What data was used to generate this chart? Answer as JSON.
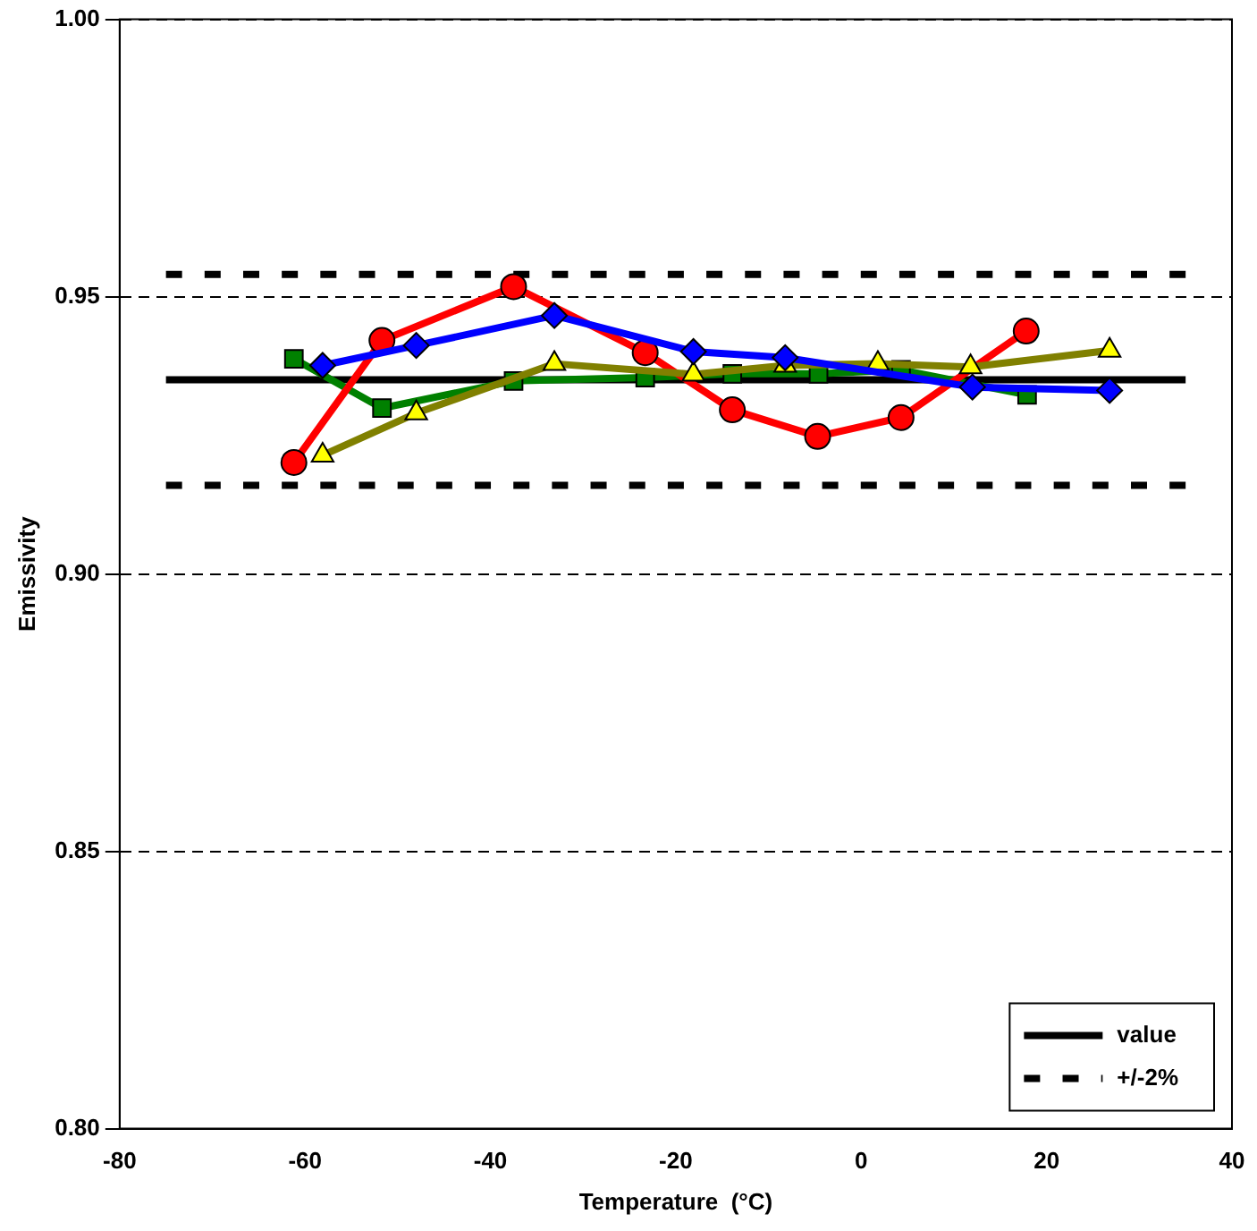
{
  "chart_data": {
    "type": "line",
    "xlabel": "Temperature  (°C)",
    "ylabel": "Emissivity",
    "xlim": [
      -80,
      40
    ],
    "xticks": [
      -80,
      -60,
      -40,
      -20,
      0,
      20,
      40
    ],
    "ylim": [
      0.8,
      1.0
    ],
    "yticks": [
      {
        "value": 0.8,
        "label": "0.80"
      },
      {
        "value": 0.85,
        "label": "0.85"
      },
      {
        "value": 0.9,
        "label": "0.90"
      },
      {
        "value": 0.95,
        "label": "0.95"
      },
      {
        "value": 1.0,
        "label": "1.00"
      }
    ],
    "grid": "y",
    "legend": "bottom right",
    "series": [
      {
        "color": "#0000ff",
        "marker": "diamond",
        "x": [
          -58.1,
          -48.0,
          -33.1,
          -18.1,
          -8.2,
          12.0,
          26.8
        ],
        "values": [
          0.9376,
          0.9412,
          0.9466,
          0.9401,
          0.939,
          0.9337,
          0.9331
        ]
      },
      {
        "color": "#808000",
        "marker": "triangle",
        "x": [
          -58.1,
          -48.0,
          -33.1,
          -18.1,
          -8.2,
          1.8,
          11.8,
          26.8
        ],
        "values": [
          0.9214,
          0.929,
          0.9379,
          0.936,
          0.9376,
          0.9379,
          0.9373,
          0.9403
        ]
      },
      {
        "color": "#ff0000",
        "marker": "circle",
        "x": [
          -61.2,
          -51.7,
          -37.5,
          -23.3,
          -13.9,
          -4.7,
          4.3,
          17.8
        ],
        "values": [
          0.9201,
          0.9421,
          0.9518,
          0.9399,
          0.9296,
          0.9248,
          0.9282,
          0.9438
        ]
      },
      {
        "color": "#008000",
        "marker": "square",
        "x": [
          -61.2,
          -51.7,
          -37.5,
          -23.3,
          -13.9,
          -4.6,
          4.3,
          17.9
        ],
        "values": [
          0.9388,
          0.9299,
          0.9348,
          0.9354,
          0.9361,
          0.9361,
          0.9368,
          0.9323
        ]
      },
      {
        "name": "value",
        "color": "#000000",
        "marker": "none",
        "x": [
          -75,
          35
        ],
        "values": [
          0.935,
          0.935
        ]
      },
      {
        "name": "+/-2%",
        "color": "#000000",
        "marker": "none",
        "line_style": "dotted",
        "x": [
          -75,
          35
        ],
        "values": [
          0.954,
          0.954
        ]
      },
      {
        "color": "#000000",
        "marker": "none",
        "line_style": "dotted",
        "x": [
          -75,
          35
        ],
        "values": [
          0.916,
          0.916
        ]
      }
    ]
  }
}
